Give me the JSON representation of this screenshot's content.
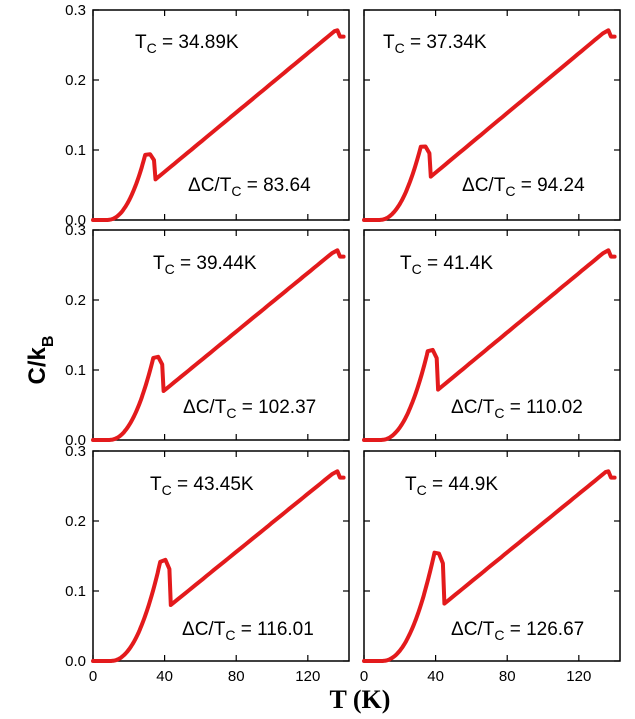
{
  "figure": {
    "ylabel_main": "C/k",
    "ylabel_sub": "B",
    "xlabel": "T (K)"
  },
  "chart_data": [
    {
      "type": "line",
      "tc_label": "T",
      "tc_sub": "C",
      "tc_value": " = 34.89K",
      "dc_prefix": "ΔC/T",
      "dc_sub": "C",
      "dc_value": " = 83.64",
      "tc": 34.89,
      "peak": 0.095,
      "drop": 0.058,
      "xlim": [
        0,
        143
      ],
      "ylim": [
        0,
        0.3
      ],
      "xticks": [
        0,
        40,
        80,
        120
      ],
      "yticks": [
        "0.0",
        "0.1",
        "0.2",
        "0.3"
      ],
      "series_color": "#e31a1c"
    },
    {
      "type": "line",
      "tc_label": "T",
      "tc_sub": "C",
      "tc_value": " = 37.34K",
      "dc_prefix": "ΔC/T",
      "dc_sub": "C",
      "dc_value": " = 94.24",
      "tc": 37.34,
      "peak": 0.106,
      "drop": 0.062,
      "xlim": [
        0,
        143
      ],
      "ylim": [
        0,
        0.3
      ],
      "xticks": [
        0,
        40,
        80,
        120
      ],
      "yticks": [
        "0.0",
        "0.1",
        "0.2",
        "0.3"
      ],
      "series_color": "#e31a1c"
    },
    {
      "type": "line",
      "tc_label": "T",
      "tc_sub": "C",
      "tc_value": " = 39.44K",
      "dc_prefix": "ΔC/T",
      "dc_sub": "C",
      "dc_value": " = 102.37",
      "tc": 39.44,
      "peak": 0.12,
      "drop": 0.07,
      "xlim": [
        0,
        143
      ],
      "ylim": [
        0,
        0.3
      ],
      "xticks": [
        0,
        40,
        80,
        120
      ],
      "yticks": [
        "0.0",
        "0.1",
        "0.2",
        "0.3"
      ],
      "series_color": "#e31a1c"
    },
    {
      "type": "line",
      "tc_label": "T",
      "tc_sub": "C",
      "tc_value": " = 41.4K",
      "dc_prefix": "ΔC/T",
      "dc_sub": "C",
      "dc_value": " = 110.02",
      "tc": 41.4,
      "peak": 0.13,
      "drop": 0.072,
      "xlim": [
        0,
        143
      ],
      "ylim": [
        0,
        0.3
      ],
      "xticks": [
        0,
        40,
        80,
        120
      ],
      "yticks": [
        "0.0",
        "0.1",
        "0.2",
        "0.3"
      ],
      "series_color": "#e31a1c"
    },
    {
      "type": "line",
      "tc_label": "T",
      "tc_sub": "C",
      "tc_value": " = 43.45K",
      "dc_prefix": "ΔC/T",
      "dc_sub": "C",
      "dc_value": " = 116.01",
      "tc": 43.45,
      "peak": 0.146,
      "drop": 0.08,
      "xlim": [
        0,
        143
      ],
      "ylim": [
        0,
        0.3
      ],
      "xticks": [
        0,
        40,
        80,
        120
      ],
      "yticks": [
        "0.0",
        "0.1",
        "0.2",
        "0.3"
      ],
      "series_color": "#e31a1c"
    },
    {
      "type": "line",
      "tc_label": "T",
      "tc_sub": "C",
      "tc_value": " = 44.9K",
      "dc_prefix": "ΔC/T",
      "dc_sub": "C",
      "dc_value": " = 126.67",
      "tc": 44.9,
      "peak": 0.155,
      "drop": 0.082,
      "xlim": [
        0,
        143
      ],
      "ylim": [
        0,
        0.3
      ],
      "xticks": [
        0,
        40,
        80,
        120
      ],
      "yticks": [
        "0.0",
        "0.1",
        "0.2",
        "0.3"
      ],
      "series_color": "#e31a1c"
    }
  ]
}
